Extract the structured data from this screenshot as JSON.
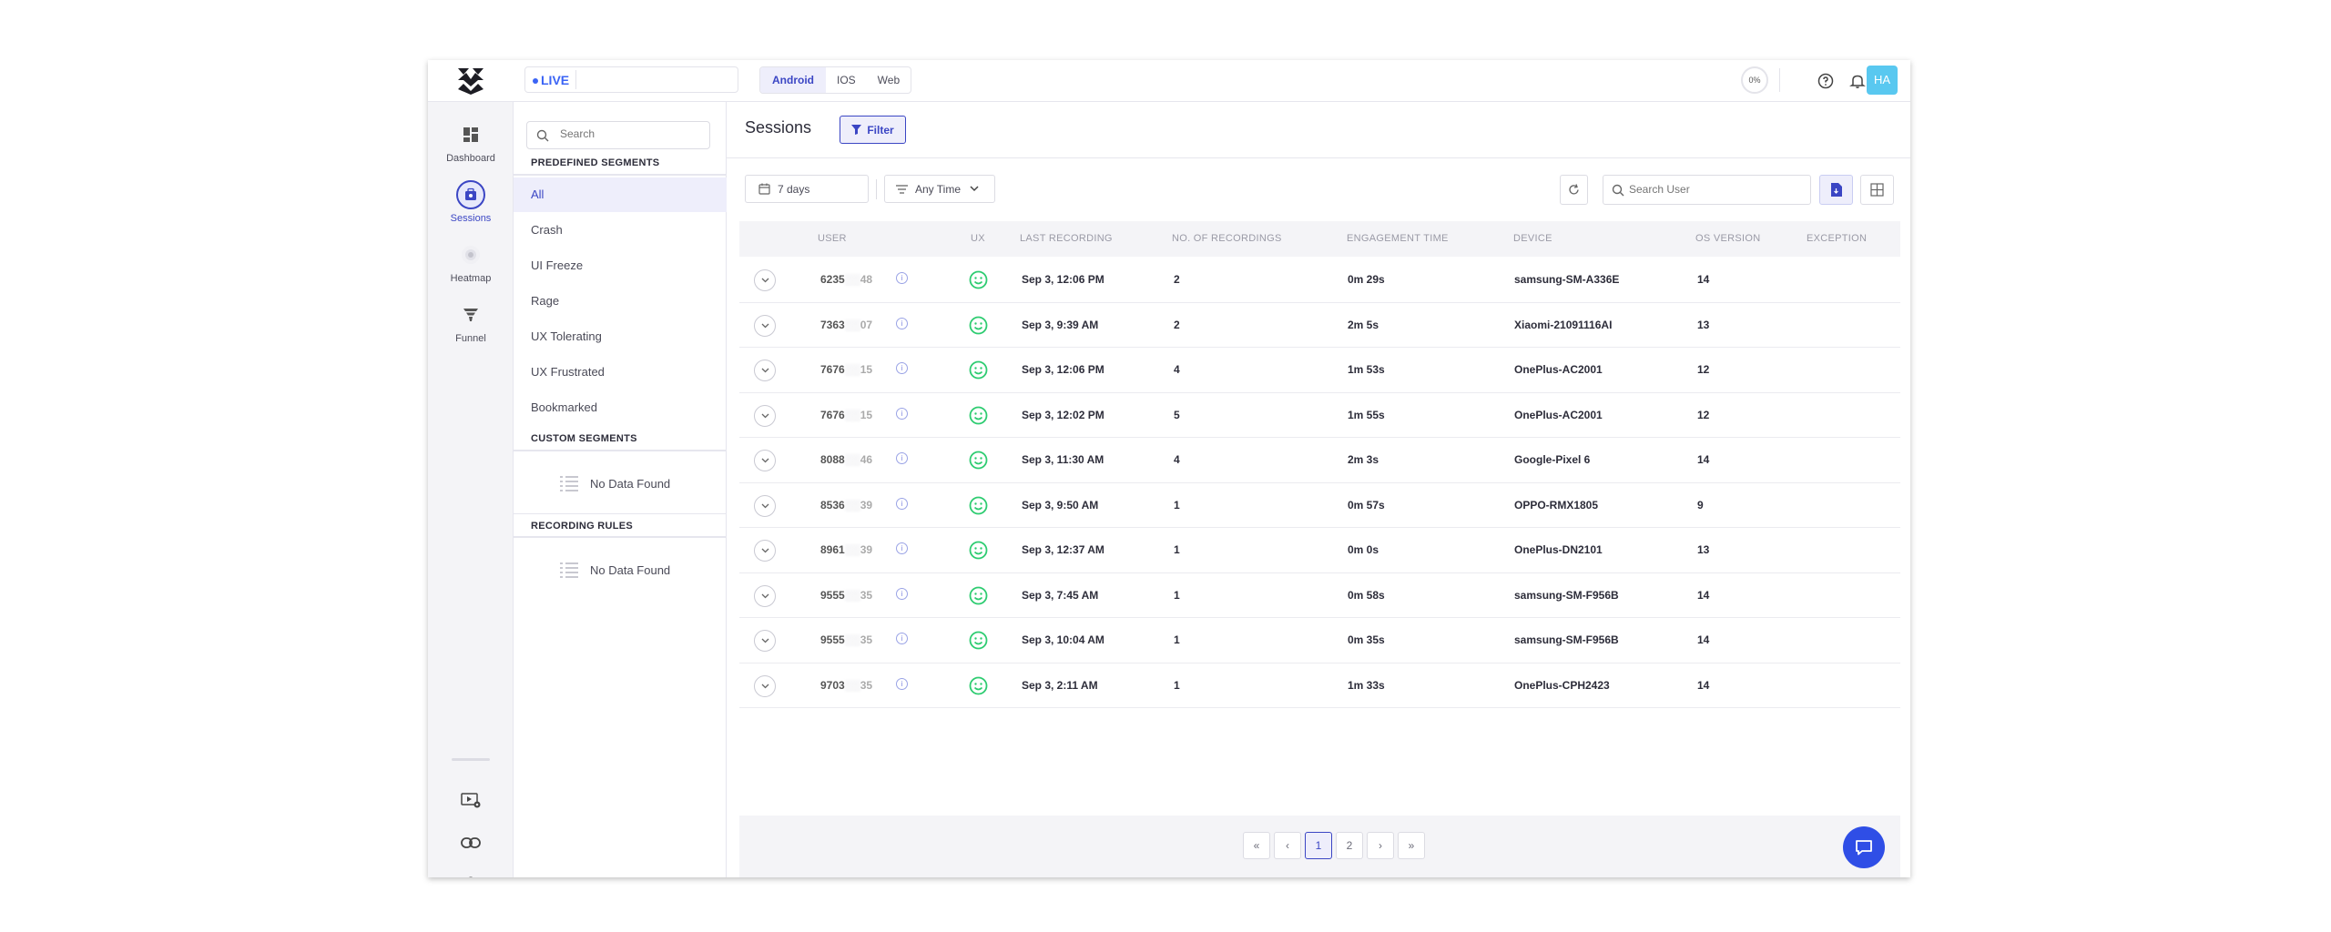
{
  "topbar": {
    "live_label": "LIVE",
    "platforms": [
      "Android",
      "IOS",
      "Web"
    ],
    "active_platform": "Android",
    "progress_label": "0%",
    "avatar_initials": "HA"
  },
  "rail": {
    "items": [
      {
        "label": "Dashboard",
        "icon": "dashboard-icon"
      },
      {
        "label": "Sessions",
        "icon": "sessions-icon"
      },
      {
        "label": "Heatmap",
        "icon": "heatmap-icon"
      },
      {
        "label": "Funnel",
        "icon": "funnel-icon"
      }
    ]
  },
  "segments": {
    "search_placeholder": "Search",
    "predefined_heading": "PREDEFINED SEGMENTS",
    "predefined": [
      "All",
      "Crash",
      "UI Freeze",
      "Rage",
      "UX Tolerating",
      "UX Frustrated",
      "Bookmarked"
    ],
    "custom_heading": "CUSTOM SEGMENTS",
    "custom_empty": "No Data Found",
    "rules_heading": "RECORDING RULES",
    "rules_empty": "No Data Found"
  },
  "main": {
    "title": "Sessions",
    "filter_label": "Filter",
    "date_range": "7 days",
    "time_filter": "Any Time",
    "search_placeholder": "Search User"
  },
  "table": {
    "columns": [
      "USER",
      "UX",
      "LAST RECORDING",
      "NO. OF RECORDINGS",
      "ENGAGEMENT TIME",
      "DEVICE",
      "OS VERSION",
      "EXCEPTION"
    ],
    "rows": [
      {
        "user_a": "6235",
        "user_b": "48",
        "last": "Sep 3, 12:06 PM",
        "count": "2",
        "time": "0m 29s",
        "device": "samsung-SM-A336E",
        "os": "14"
      },
      {
        "user_a": "7363",
        "user_b": "07",
        "last": "Sep 3, 9:39 AM",
        "count": "2",
        "time": "2m 5s",
        "device": "Xiaomi-21091116AI",
        "os": "13"
      },
      {
        "user_a": "7676",
        "user_b": "15",
        "last": "Sep 3, 12:06 PM",
        "count": "4",
        "time": "1m 53s",
        "device": "OnePlus-AC2001",
        "os": "12"
      },
      {
        "user_a": "7676",
        "user_b": "15",
        "last": "Sep 3, 12:02 PM",
        "count": "5",
        "time": "1m 55s",
        "device": "OnePlus-AC2001",
        "os": "12"
      },
      {
        "user_a": "8088",
        "user_b": "46",
        "last": "Sep 3, 11:30 AM",
        "count": "4",
        "time": "2m 3s",
        "device": "Google-Pixel 6",
        "os": "14"
      },
      {
        "user_a": "8536",
        "user_b": "39",
        "last": "Sep 3, 9:50 AM",
        "count": "1",
        "time": "0m 57s",
        "device": "OPPO-RMX1805",
        "os": "9"
      },
      {
        "user_a": "8961",
        "user_b": "39",
        "last": "Sep 3, 12:37 AM",
        "count": "1",
        "time": "0m 0s",
        "device": "OnePlus-DN2101",
        "os": "13"
      },
      {
        "user_a": "9555",
        "user_b": "35",
        "last": "Sep 3, 7:45 AM",
        "count": "1",
        "time": "0m 58s",
        "device": "samsung-SM-F956B",
        "os": "14"
      },
      {
        "user_a": "9555",
        "user_b": "35",
        "last": "Sep 3, 10:04 AM",
        "count": "1",
        "time": "0m 35s",
        "device": "samsung-SM-F956B",
        "os": "14"
      },
      {
        "user_a": "9703",
        "user_b": "35",
        "last": "Sep 3, 2:11 AM",
        "count": "1",
        "time": "1m 33s",
        "device": "OnePlus-CPH2423",
        "os": "14"
      }
    ]
  },
  "pager": {
    "first": "«",
    "prev": "‹",
    "pages": [
      "1",
      "2"
    ],
    "active_page": "1",
    "next": "›",
    "last": "»"
  },
  "colors": {
    "accent": "#3b46c4",
    "live_blue": "#3b64f5",
    "smile_green": "#2ecc71",
    "avatar": "#59c8f0",
    "chat": "#2f4ee6"
  }
}
